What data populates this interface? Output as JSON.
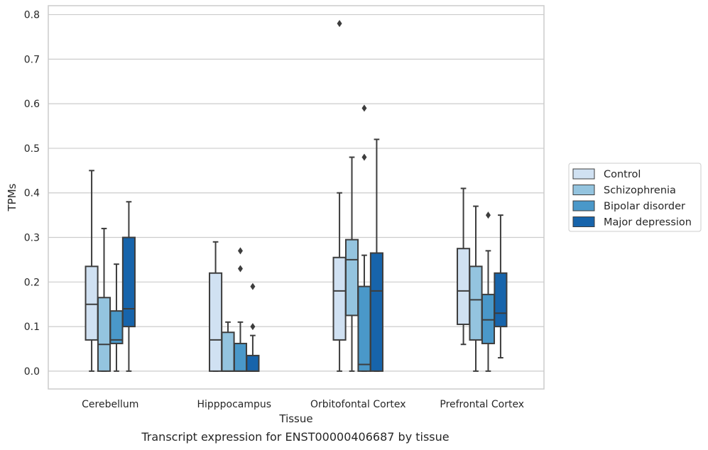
{
  "caption": "Transcript expression for ENST00000406687 by tissue",
  "chart_data": {
    "type": "box",
    "title": "",
    "xlabel": "Tissue",
    "ylabel": "TPMs",
    "ylim": [
      -0.04,
      0.82
    ],
    "yticks": [
      0.0,
      0.1,
      0.2,
      0.3,
      0.4,
      0.5,
      0.6,
      0.7,
      0.8
    ],
    "ytick_labels": [
      "0.0",
      "0.1",
      "0.2",
      "0.3",
      "0.4",
      "0.5",
      "0.6",
      "0.7",
      "0.8"
    ],
    "grid": true,
    "legend_position": "right",
    "categories": [
      "Cerebellum",
      "Hipppocampus",
      "Orbitofontal Cortex",
      "Prefrontal Cortex"
    ],
    "series": [
      {
        "name": "Control",
        "color": "#d0e1f2",
        "boxes": [
          {
            "whislo": 0.0,
            "q1": 0.07,
            "med": 0.15,
            "q3": 0.235,
            "whishi": 0.45,
            "fliers": []
          },
          {
            "whislo": 0.0,
            "q1": 0.0,
            "med": 0.07,
            "q3": 0.22,
            "whishi": 0.29,
            "fliers": []
          },
          {
            "whislo": 0.0,
            "q1": 0.07,
            "med": 0.18,
            "q3": 0.255,
            "whishi": 0.4,
            "fliers": [
              0.78
            ]
          },
          {
            "whislo": 0.06,
            "q1": 0.105,
            "med": 0.18,
            "q3": 0.275,
            "whishi": 0.41,
            "fliers": []
          }
        ]
      },
      {
        "name": "Schizophrenia",
        "color": "#94c4df",
        "boxes": [
          {
            "whislo": 0.0,
            "q1": 0.0,
            "med": 0.06,
            "q3": 0.165,
            "whishi": 0.32,
            "fliers": []
          },
          {
            "whislo": 0.0,
            "q1": 0.0,
            "med": 0.0,
            "q3": 0.087,
            "whishi": 0.11,
            "fliers": []
          },
          {
            "whislo": 0.0,
            "q1": 0.125,
            "med": 0.25,
            "q3": 0.295,
            "whishi": 0.48,
            "fliers": []
          },
          {
            "whislo": 0.0,
            "q1": 0.07,
            "med": 0.16,
            "q3": 0.235,
            "whishi": 0.37,
            "fliers": []
          }
        ]
      },
      {
        "name": "Bipolar disorder",
        "color": "#4a98c9",
        "boxes": [
          {
            "whislo": 0.0,
            "q1": 0.062,
            "med": 0.07,
            "q3": 0.135,
            "whishi": 0.24,
            "fliers": []
          },
          {
            "whislo": 0.0,
            "q1": 0.0,
            "med": 0.0,
            "q3": 0.062,
            "whishi": 0.11,
            "fliers": [
              0.27,
              0.23
            ]
          },
          {
            "whislo": 0.0,
            "q1": 0.0,
            "med": 0.015,
            "q3": 0.19,
            "whishi": 0.26,
            "fliers": [
              0.59,
              0.48
            ]
          },
          {
            "whislo": 0.0,
            "q1": 0.062,
            "med": 0.115,
            "q3": 0.172,
            "whishi": 0.27,
            "fliers": [
              0.35
            ]
          }
        ]
      },
      {
        "name": "Major depression",
        "color": "#1764ab",
        "boxes": [
          {
            "whislo": 0.0,
            "q1": 0.1,
            "med": 0.14,
            "q3": 0.3,
            "whishi": 0.38,
            "fliers": []
          },
          {
            "whislo": 0.0,
            "q1": 0.0,
            "med": 0.0,
            "q3": 0.035,
            "whishi": 0.08,
            "fliers": [
              0.19,
              0.1
            ]
          },
          {
            "whislo": 0.0,
            "q1": 0.0,
            "med": 0.18,
            "q3": 0.265,
            "whishi": 0.52,
            "fliers": []
          },
          {
            "whislo": 0.03,
            "q1": 0.1,
            "med": 0.13,
            "q3": 0.22,
            "whishi": 0.35,
            "fliers": []
          }
        ]
      }
    ]
  }
}
